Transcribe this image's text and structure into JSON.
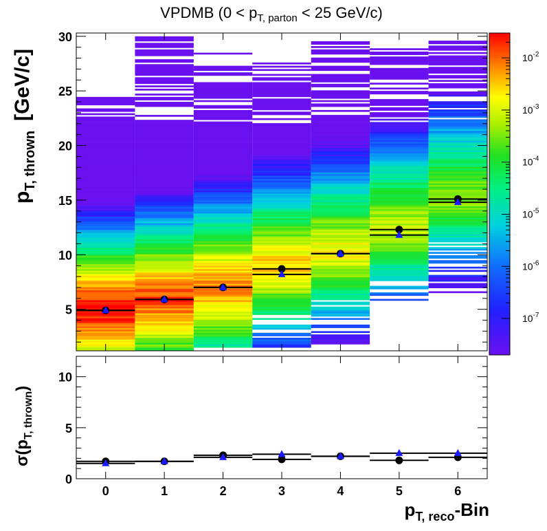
{
  "title": {
    "pre": "VPDMB (0 < p",
    "sub": "T, parton",
    "post": " < 25 GeV/c)"
  },
  "y_label_top": {
    "main": "p",
    "sub": "T, thrown",
    "unit": "[GeV/c]"
  },
  "y_label_bottom": {
    "pre": "σ(p",
    "sub": "T, thrown",
    "post": ")"
  },
  "x_label": {
    "main": "p",
    "sub": "T, reco",
    "post": "-Bin"
  },
  "colors": {
    "mean_marker": "#000000",
    "gauss_marker": "#1a1aff"
  },
  "chart_data": [
    {
      "type": "heatmap",
      "x_categories": [
        "0",
        "1",
        "2",
        "3",
        "4",
        "5",
        "6"
      ],
      "y_ticks": [
        "5",
        "10",
        "15",
        "20",
        "25",
        "30"
      ],
      "ylim": [
        1.2,
        30.3
      ],
      "z_scale": "log",
      "z_ticks": [
        "10-7",
        "10-6",
        "10-5",
        "10-4",
        "10-3",
        "10-2"
      ],
      "zlim": [
        2e-08,
        0.03
      ],
      "column_y_extent": [
        [
          1.2,
          24.5
        ],
        [
          1.2,
          30.0
        ],
        [
          1.5,
          28.5
        ],
        [
          1.5,
          27.5
        ],
        [
          1.5,
          29.5
        ],
        [
          5.5,
          28.8
        ],
        [
          6.5,
          29.5
        ]
      ],
      "series": [
        {
          "name": "",
          "marker": "circle",
          "color": "#000000",
          "x": [
            0,
            1,
            2,
            3,
            4,
            5,
            6
          ],
          "y": [
            4.9,
            5.9,
            7.0,
            8.7,
            10.1,
            12.3,
            15.1
          ],
          "xerr": 0.5
        },
        {
          "name": "",
          "marker": "triangle",
          "color": "#1a1aff",
          "x": [
            0,
            1,
            2,
            3,
            4,
            5,
            6
          ],
          "y": [
            4.9,
            5.9,
            7.0,
            8.2,
            10.1,
            11.8,
            14.8
          ],
          "xerr": 0.5
        }
      ]
    },
    {
      "type": "scatter",
      "x_categories": [
        "0",
        "1",
        "2",
        "3",
        "4",
        "5",
        "6"
      ],
      "y_ticks": [
        "5",
        "10"
      ],
      "ylim": [
        0,
        12
      ],
      "series": [
        {
          "name": "",
          "marker": "circle",
          "color": "#000000",
          "x": [
            0,
            1,
            2,
            3,
            4,
            5,
            6
          ],
          "y": [
            1.7,
            1.7,
            2.3,
            1.9,
            2.2,
            1.8,
            2.1
          ],
          "xerr": 0.5
        },
        {
          "name": "",
          "marker": "triangle",
          "color": "#1a1aff",
          "x": [
            0,
            1,
            2,
            3,
            4,
            5,
            6
          ],
          "y": [
            1.5,
            1.7,
            2.1,
            2.4,
            2.2,
            2.5,
            2.5
          ],
          "xerr": 0.5
        }
      ]
    }
  ]
}
